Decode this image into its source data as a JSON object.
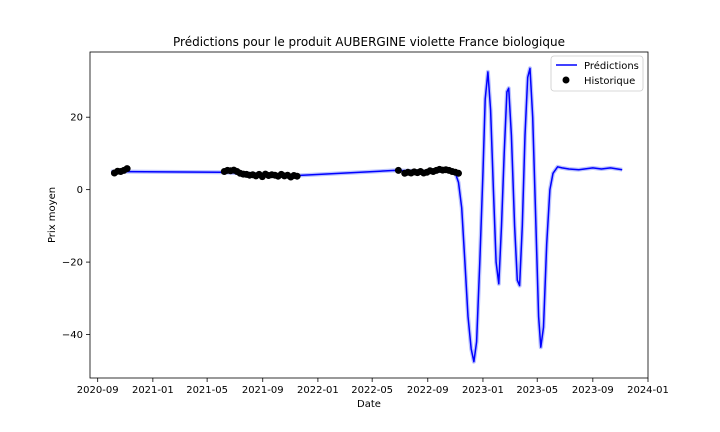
{
  "chart_data": {
    "type": "line",
    "title": "Prédictions pour le produit AUBERGINE violette France biologique",
    "xlabel": "Date",
    "ylabel": "Prix moyen",
    "x_ticks": [
      "2020-09",
      "2021-01",
      "2021-05",
      "2021-09",
      "2022-01",
      "2022-05",
      "2022-09",
      "2023-01",
      "2023-05",
      "2023-09",
      "2024-01"
    ],
    "y_ticks": [
      -40,
      -20,
      0,
      20
    ],
    "xlim": [
      "2020-08-15",
      "2024-01-01"
    ],
    "ylim": [
      -52,
      38
    ],
    "legend": {
      "placement": "top-right",
      "entries": [
        "Prédictions",
        "Historique"
      ]
    },
    "colors": {
      "prediction": "#0000ff",
      "interval": "#aab4ff",
      "history": "#000000"
    },
    "series": [
      {
        "name": "Prédictions",
        "kind": "line",
        "points": [
          [
            "2020-10-01",
            5.0
          ],
          [
            "2021-06-01",
            4.8
          ],
          [
            "2021-11-01",
            3.8
          ],
          [
            "2022-06-20",
            5.3
          ],
          [
            "2022-09-01",
            5.0
          ],
          [
            "2022-10-15",
            5.2
          ],
          [
            "2022-11-01",
            4.5
          ],
          [
            "2022-11-08",
            2.0
          ],
          [
            "2022-11-15",
            -5
          ],
          [
            "2022-11-22",
            -20
          ],
          [
            "2022-11-29",
            -35
          ],
          [
            "2022-12-06",
            -44
          ],
          [
            "2022-12-12",
            -47.5
          ],
          [
            "2022-12-18",
            -42
          ],
          [
            "2022-12-25",
            -20
          ],
          [
            "2023-01-01",
            5
          ],
          [
            "2023-01-06",
            25
          ],
          [
            "2023-01-12",
            32.5
          ],
          [
            "2023-01-18",
            22
          ],
          [
            "2023-01-24",
            0
          ],
          [
            "2023-01-30",
            -20
          ],
          [
            "2023-02-05",
            -26
          ],
          [
            "2023-02-11",
            -10
          ],
          [
            "2023-02-17",
            10
          ],
          [
            "2023-02-23",
            27
          ],
          [
            "2023-02-27",
            28
          ],
          [
            "2023-03-05",
            15
          ],
          [
            "2023-03-12",
            -10
          ],
          [
            "2023-03-18",
            -25
          ],
          [
            "2023-03-23",
            -26.5
          ],
          [
            "2023-03-29",
            -10
          ],
          [
            "2023-04-04",
            15
          ],
          [
            "2023-04-10",
            31
          ],
          [
            "2023-04-15",
            33.5
          ],
          [
            "2023-04-21",
            20
          ],
          [
            "2023-04-27",
            -5
          ],
          [
            "2023-05-04",
            -35
          ],
          [
            "2023-05-09",
            -43.5
          ],
          [
            "2023-05-15",
            -38
          ],
          [
            "2023-05-22",
            -15
          ],
          [
            "2023-05-29",
            0
          ],
          [
            "2023-06-05",
            4.5
          ],
          [
            "2023-06-15",
            6.3
          ],
          [
            "2023-06-25",
            6.0
          ],
          [
            "2023-07-10",
            5.7
          ],
          [
            "2023-08-01",
            5.5
          ],
          [
            "2023-09-01",
            6.0
          ],
          [
            "2023-09-20",
            5.7
          ],
          [
            "2023-10-10",
            6.0
          ],
          [
            "2023-11-05",
            5.5
          ]
        ]
      },
      {
        "name": "Historique",
        "kind": "scatter",
        "points": [
          [
            "2020-10-08",
            4.6
          ],
          [
            "2020-10-15",
            5.1
          ],
          [
            "2020-10-22",
            5.0
          ],
          [
            "2020-10-29",
            5.3
          ],
          [
            "2020-11-05",
            5.8
          ],
          [
            "2021-06-08",
            5.0
          ],
          [
            "2021-06-15",
            5.3
          ],
          [
            "2021-06-22",
            5.2
          ],
          [
            "2021-06-29",
            5.4
          ],
          [
            "2021-07-06",
            5.0
          ],
          [
            "2021-07-13",
            4.5
          ],
          [
            "2021-07-20",
            4.3
          ],
          [
            "2021-07-27",
            4.2
          ],
          [
            "2021-08-03",
            4.0
          ],
          [
            "2021-08-10",
            4.1
          ],
          [
            "2021-08-17",
            3.8
          ],
          [
            "2021-08-24",
            4.2
          ],
          [
            "2021-08-31",
            3.6
          ],
          [
            "2021-09-07",
            4.3
          ],
          [
            "2021-09-14",
            3.9
          ],
          [
            "2021-09-21",
            4.1
          ],
          [
            "2021-09-28",
            4.0
          ],
          [
            "2021-10-05",
            3.7
          ],
          [
            "2021-10-12",
            4.2
          ],
          [
            "2021-10-19",
            3.8
          ],
          [
            "2021-10-26",
            4.0
          ],
          [
            "2021-11-02",
            3.5
          ],
          [
            "2021-11-09",
            3.9
          ],
          [
            "2021-11-16",
            3.7
          ],
          [
            "2022-06-28",
            5.3
          ],
          [
            "2022-07-12",
            4.5
          ],
          [
            "2022-07-19",
            4.8
          ],
          [
            "2022-07-26",
            4.6
          ],
          [
            "2022-08-02",
            4.9
          ],
          [
            "2022-08-09",
            4.7
          ],
          [
            "2022-08-16",
            5.0
          ],
          [
            "2022-08-23",
            4.6
          ],
          [
            "2022-08-30",
            4.8
          ],
          [
            "2022-09-06",
            5.2
          ],
          [
            "2022-09-13",
            5.0
          ],
          [
            "2022-09-20",
            5.3
          ],
          [
            "2022-09-27",
            5.6
          ],
          [
            "2022-10-04",
            5.4
          ],
          [
            "2022-10-11",
            5.5
          ],
          [
            "2022-10-18",
            5.3
          ],
          [
            "2022-10-25",
            5.0
          ],
          [
            "2022-11-01",
            4.8
          ],
          [
            "2022-11-08",
            4.5
          ]
        ]
      }
    ]
  }
}
